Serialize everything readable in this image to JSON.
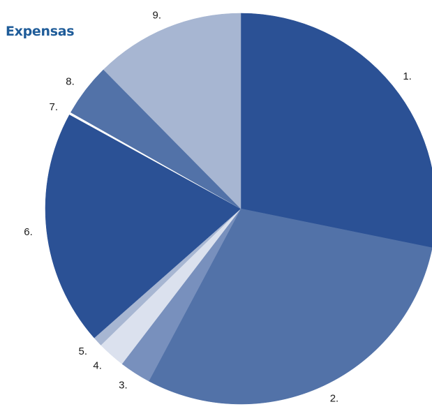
{
  "chart_data": {
    "type": "pie",
    "title": "Expensas",
    "categories": [
      "1.",
      "2.",
      "3.",
      "4.",
      "5.",
      "6.",
      "7.",
      "8.",
      "9."
    ],
    "values": [
      28.2,
      29.6,
      2.6,
      2.3,
      0.8,
      19.5,
      0.2,
      4.4,
      12.4
    ],
    "colors": [
      "#2b5195",
      "#5272a8",
      "#7890bd",
      "#dbe1ee",
      "#a7b6d2",
      "#2b5195",
      "#ffffff",
      "#5272a8",
      "#a7b6d2"
    ],
    "start_angle_deg": 0,
    "direction": "clockwise"
  }
}
